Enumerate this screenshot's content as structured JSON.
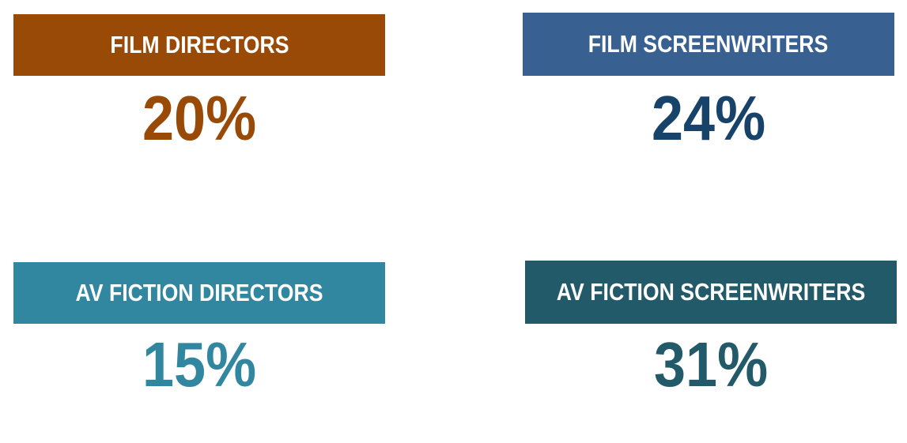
{
  "stats": [
    {
      "label": "FILM DIRECTORS",
      "value": "20%",
      "box_color": "#994a07",
      "value_color": "#994a07"
    },
    {
      "label": "FILM SCREENWRITERS",
      "value": "24%",
      "box_color": "#386090",
      "value_color": "#17436b"
    },
    {
      "label": "AV FICTION DIRECTORS",
      "value": "15%",
      "box_color": "#3287a0",
      "value_color": "#3287a0"
    },
    {
      "label": "AV FICTION SCREENWRITERS",
      "value": "31%",
      "box_color": "#225a69",
      "value_color": "#225a69"
    }
  ]
}
